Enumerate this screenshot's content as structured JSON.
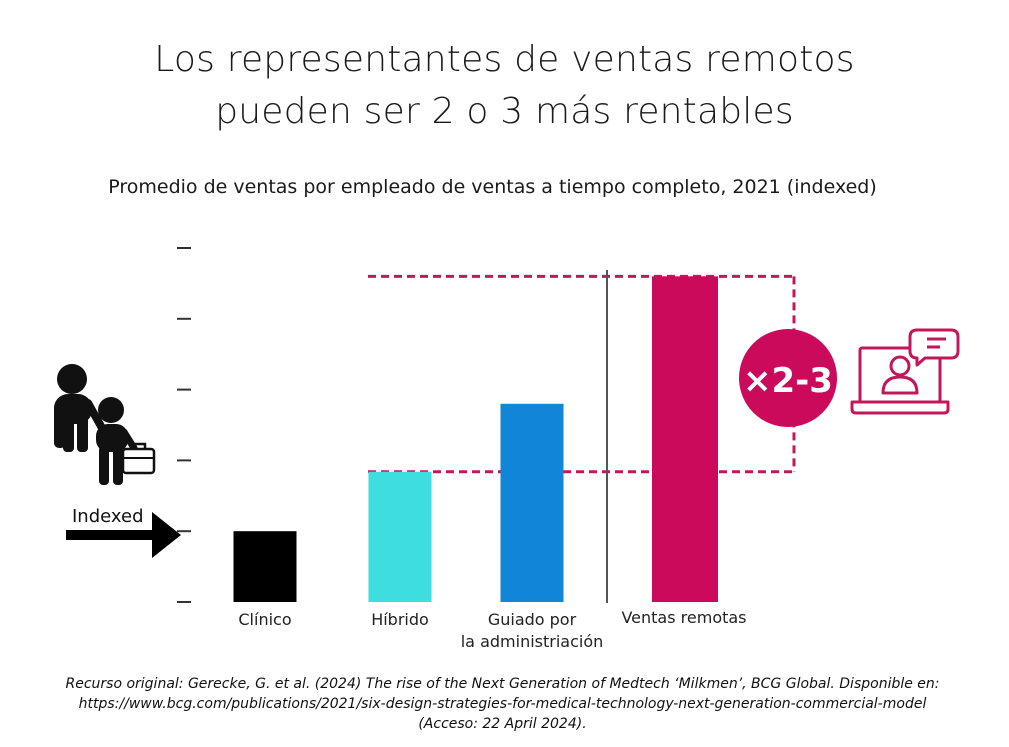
{
  "title_lines": [
    "Los representantes de ventas remotos",
    "pueden ser 2 o 3 más rentables"
  ],
  "chart_data": {
    "type": "bar",
    "subtitle": "Promedio de ventas por empleado de ventas a tiempo completo, 2021 (indexed)",
    "categories": [
      "Clínico",
      "Híbrido",
      "Guiado por\nla administriación",
      "Ventas remotas"
    ],
    "values": [
      1.0,
      1.84,
      2.8,
      4.6
    ],
    "ylim": [
      0,
      5
    ],
    "yticks": [
      0,
      1,
      2,
      3,
      4,
      5
    ],
    "y_tick_labels_shown": false,
    "colors": [
      "#000000",
      "#3ddde0",
      "#1185d8",
      "#cc0a5b"
    ],
    "baseline_label": "Indexed",
    "multiplier": "×2-3",
    "annotation_color": "#c2185b"
  },
  "icons": [
    "people-with-briefcase-icon",
    "arrow-right-icon",
    "laptop-user-chat-icon"
  ],
  "source_lines": [
    "Recurso original:  Gerecke, G. et al. (2024) The rise of the Next Generation of Medtech ‘Milkmen’, BCG Global. Disponible en:",
    "https://www.bcg.com/publications/2021/six-design-strategies-for-medical-technology-next-generation-commercial-model",
    "(Acceso: 22 April 2024)."
  ]
}
